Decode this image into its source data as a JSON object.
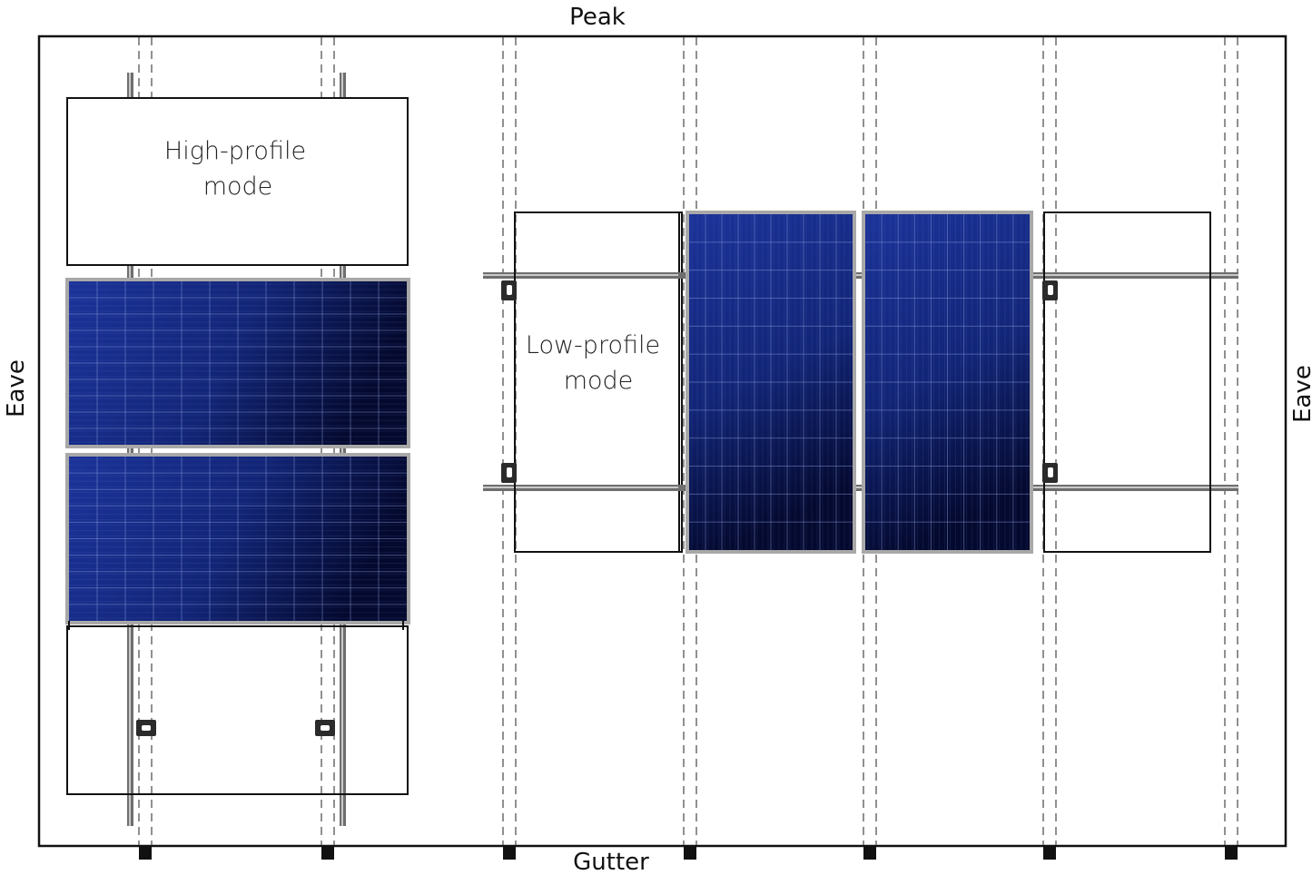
{
  "labels": {
    "peak": "Peak",
    "gutter": "Gutter",
    "eave_left": "Eave",
    "eave_right": "Eave",
    "high_profile_line1": "High-profile",
    "high_profile_line2": "mode",
    "low_profile_line1": "Low-profile",
    "low_profile_line2": "mode"
  },
  "colors": {
    "panel_dark": "#04092e",
    "panel_light": "#1c3399",
    "panel_frame": "#a8a8a8",
    "rail": "#6e6e6e",
    "outline": "#111111",
    "rafter_line": "#555555"
  },
  "high_profile_mode": {
    "installed_panel_orientation": "landscape",
    "installed_panels": 2,
    "empty_panel_outlines": 2,
    "rails": 2,
    "rail_direction": "vertical"
  },
  "low_profile_mode": {
    "installed_panel_orientation": "portrait",
    "installed_panels": 2,
    "empty_panel_outlines": 2,
    "rails": 2,
    "rail_direction": "horizontal"
  },
  "rafters": 7
}
